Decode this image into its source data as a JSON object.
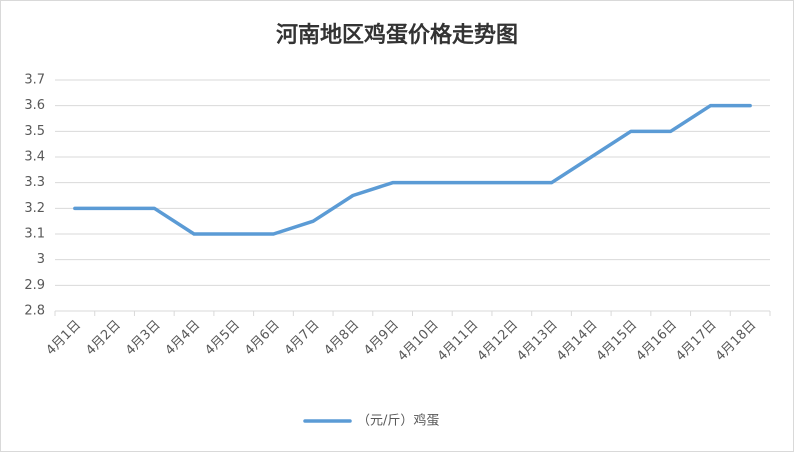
{
  "chart_data": {
    "type": "line",
    "title": "河南地区鸡蛋价格走势图",
    "categories": [
      "4月1日",
      "4月2日",
      "4月3日",
      "4月4日",
      "4月5日",
      "4月6日",
      "4月7日",
      "4月8日",
      "4月9日",
      "4月10日",
      "4月11日",
      "4月12日",
      "4月13日",
      "4月14日",
      "4月15日",
      "4月16日",
      "4月17日",
      "4月18日"
    ],
    "series": [
      {
        "name": "（元/斤）鸡蛋",
        "color": "#5b9bd5",
        "values": [
          3.2,
          3.2,
          3.2,
          3.1,
          3.1,
          3.1,
          3.15,
          3.25,
          3.3,
          3.3,
          3.3,
          3.3,
          3.3,
          3.4,
          3.5,
          3.5,
          3.6,
          3.6
        ]
      }
    ],
    "ylim": [
      2.8,
      3.7
    ],
    "yticks": [
      2.8,
      2.9,
      3,
      3.1,
      3.2,
      3.3,
      3.4,
      3.5,
      3.6,
      3.7
    ],
    "grid": true,
    "legend": "bottom"
  }
}
